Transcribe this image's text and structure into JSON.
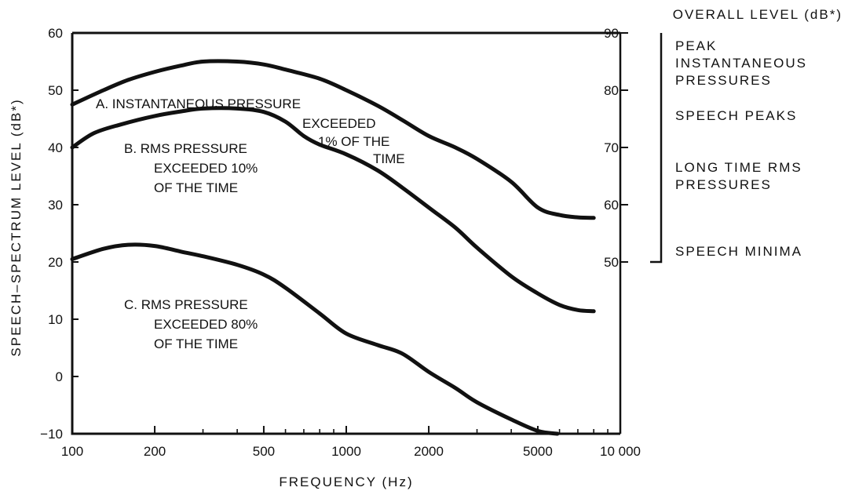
{
  "chart_data": {
    "type": "line",
    "xlabel": "FREQUENCY (Hz)",
    "ylabel": "SPEECH–SPECTRUM LEVEL (dB*)",
    "right_axis_title": "OVERALL LEVEL (dB*)",
    "x_scale": "log",
    "xlim": [
      100,
      10000
    ],
    "ylim": [
      -10,
      60
    ],
    "right_ylim": [
      50,
      90
    ],
    "x_tick_values": [
      100,
      200,
      500,
      1000,
      2000,
      5000,
      10000
    ],
    "x_tick_labels": [
      "100",
      "200",
      "500",
      "1000",
      "2000",
      "5000",
      "10 000"
    ],
    "y_ticks": [
      60,
      50,
      40,
      30,
      20,
      10,
      0,
      -10
    ],
    "y_tick_labels": [
      "60",
      "50",
      "40",
      "30",
      "20",
      "10",
      "0",
      "−10"
    ],
    "right_y_ticks": [
      90,
      80,
      70,
      60,
      50
    ],
    "right_y_tick_labels": [
      "90",
      "80",
      "70",
      "60",
      "50"
    ],
    "grid": false,
    "series": [
      {
        "label_lines": [
          "A. INSTANTANEOUS PRESSURE",
          "EXCEEDED",
          "1% OF THE",
          "TIME"
        ],
        "x": [
          100,
          130,
          160,
          200,
          250,
          300,
          400,
          500,
          600,
          800,
          1000,
          1300,
          1600,
          2000,
          2500,
          3000,
          4000,
          5000,
          6000,
          7000,
          8000
        ],
        "y": [
          47.5,
          50.0,
          51.8,
          53.2,
          54.3,
          55.0,
          55.0,
          54.5,
          53.6,
          52.0,
          50.0,
          47.3,
          44.8,
          42.0,
          40.0,
          38.0,
          34.0,
          29.5,
          28.2,
          27.8,
          27.7
        ]
      },
      {
        "label_lines": [
          "B. RMS PRESSURE",
          "EXCEEDED 10%",
          "OF THE TIME"
        ],
        "x": [
          100,
          120,
          150,
          200,
          250,
          300,
          400,
          500,
          600,
          700,
          800,
          1000,
          1300,
          1600,
          2000,
          2500,
          3000,
          4000,
          5000,
          6000,
          7000,
          8000
        ],
        "y": [
          40.0,
          42.5,
          44.0,
          45.5,
          46.3,
          46.8,
          46.8,
          46.2,
          44.5,
          42.0,
          40.5,
          38.8,
          36.0,
          33.0,
          29.5,
          26.0,
          22.5,
          17.5,
          14.5,
          12.5,
          11.6,
          11.4
        ]
      },
      {
        "label_lines": [
          "C. RMS PRESSURE",
          "EXCEEDED 80%",
          "OF THE TIME"
        ],
        "x": [
          100,
          130,
          160,
          200,
          250,
          300,
          400,
          500,
          600,
          800,
          1000,
          1300,
          1600,
          2000,
          2500,
          3000,
          4000,
          5000,
          5900
        ],
        "y": [
          20.5,
          22.3,
          23.0,
          22.8,
          21.8,
          21.0,
          19.5,
          17.8,
          15.5,
          11.0,
          7.5,
          5.5,
          4.0,
          0.8,
          -2.0,
          -4.5,
          -7.5,
          -9.5,
          -10.0
        ]
      }
    ],
    "right_side_labels": [
      {
        "lines": [
          "PEAK",
          "INSTANTANEOUS",
          "PRESSURES"
        ]
      },
      {
        "lines": [
          "SPEECH PEAKS"
        ]
      },
      {
        "lines": [
          "LONG TIME RMS",
          "PRESSURES"
        ]
      },
      {
        "lines": [
          "SPEECH MINIMA"
        ]
      }
    ]
  }
}
